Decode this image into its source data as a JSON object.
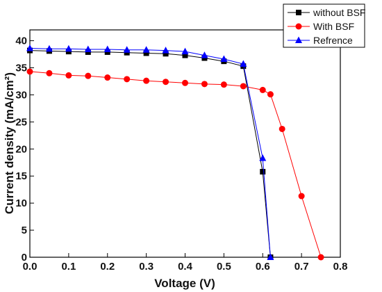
{
  "chart_data": {
    "type": "line",
    "title": "",
    "xlabel": "Voltage (V)",
    "ylabel": "Current density (mA/cm²)",
    "xlim": [
      0.0,
      0.8
    ],
    "ylim": [
      0,
      42
    ],
    "xticks": [
      "0.0",
      "0.1",
      "0.2",
      "0.3",
      "0.4",
      "0.5",
      "0.6",
      "0.7",
      "0.8"
    ],
    "yticks": [
      "0",
      "5",
      "10",
      "15",
      "20",
      "25",
      "30",
      "35",
      "40"
    ],
    "grid": false,
    "legend_position": "top-right",
    "series": [
      {
        "name": "without BSF",
        "color": "#000000",
        "marker": "square",
        "x": [
          0.0,
          0.05,
          0.1,
          0.15,
          0.2,
          0.25,
          0.3,
          0.35,
          0.4,
          0.45,
          0.5,
          0.55,
          0.6,
          0.62
        ],
        "y": [
          38.2,
          38.1,
          38.0,
          37.9,
          37.9,
          37.8,
          37.7,
          37.6,
          37.3,
          36.8,
          36.2,
          35.3,
          15.8,
          0.0
        ]
      },
      {
        "name": "With BSF",
        "color": "#ff0000",
        "marker": "circle",
        "x": [
          0.0,
          0.05,
          0.1,
          0.15,
          0.2,
          0.25,
          0.3,
          0.35,
          0.4,
          0.45,
          0.5,
          0.55,
          0.6,
          0.62,
          0.65,
          0.7,
          0.75
        ],
        "y": [
          34.3,
          34.0,
          33.6,
          33.5,
          33.2,
          32.9,
          32.6,
          32.4,
          32.2,
          32.0,
          31.9,
          31.6,
          30.9,
          30.1,
          23.7,
          11.3,
          0.0
        ]
      },
      {
        "name": "Refrence",
        "color": "#0000ff",
        "marker": "triangle",
        "x": [
          0.0,
          0.05,
          0.1,
          0.15,
          0.2,
          0.25,
          0.3,
          0.35,
          0.4,
          0.45,
          0.5,
          0.55,
          0.6,
          0.62
        ],
        "y": [
          38.6,
          38.5,
          38.5,
          38.4,
          38.4,
          38.3,
          38.3,
          38.2,
          38.0,
          37.3,
          36.6,
          35.7,
          18.3,
          0.0
        ]
      }
    ]
  }
}
